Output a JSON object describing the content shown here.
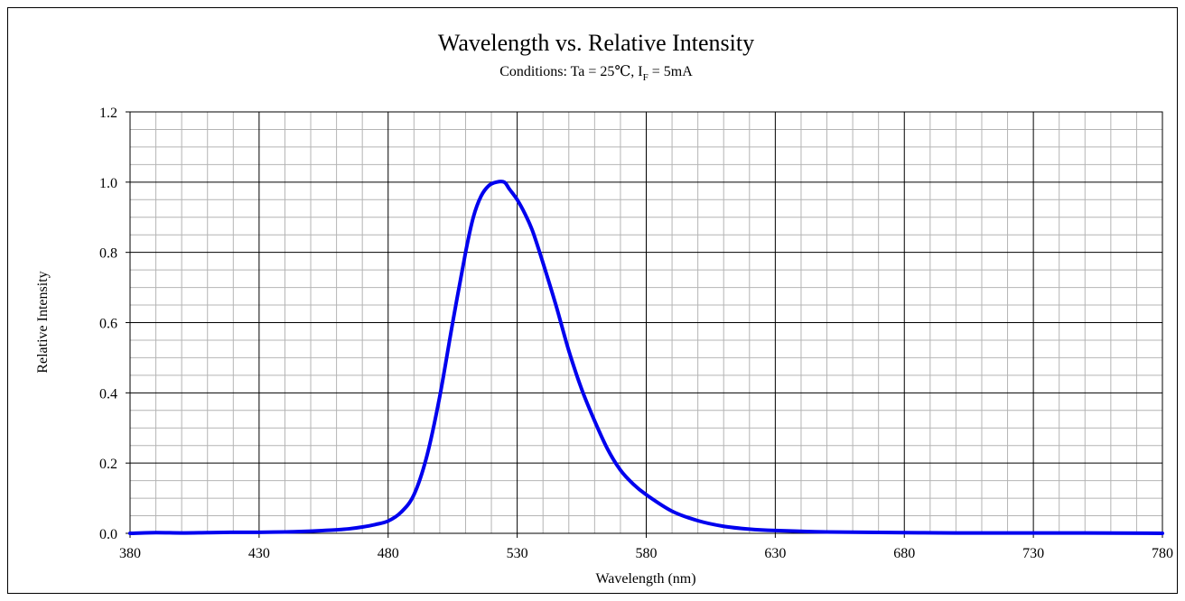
{
  "chart_data": {
    "type": "line",
    "title": "Wavelength vs. Relative Intensity",
    "subtitle": {
      "prefix": "Conditions: Ta = 25℃, I",
      "subscript": "F",
      "suffix": " = 5mA"
    },
    "xlabel": "Wavelength (nm)",
    "ylabel": "Relative Intensity",
    "xlim": [
      380,
      780
    ],
    "ylim": [
      0,
      1.2
    ],
    "x_ticks": [
      "380",
      "430",
      "480",
      "530",
      "580",
      "630",
      "680",
      "730",
      "780"
    ],
    "y_ticks": [
      "0.0",
      "0.2",
      "0.4",
      "0.6",
      "0.8",
      "1.0",
      "1.2"
    ],
    "grid": true,
    "line_color": "#0000ee",
    "series": [
      {
        "x": [
          380,
          390,
          400,
          410,
          420,
          430,
          440,
          450,
          455,
          460,
          465,
          470,
          475,
          480,
          485,
          490,
          495,
          500,
          505,
          510,
          513,
          516,
          519,
          522,
          525,
          527,
          530,
          533,
          536,
          540,
          545,
          550,
          555,
          560,
          565,
          570,
          575,
          580,
          590,
          600,
          610,
          620,
          630,
          650,
          680,
          700,
          750,
          780
        ],
        "y": [
          0.0,
          0.002,
          0.001,
          0.002,
          0.003,
          0.003,
          0.004,
          0.006,
          0.008,
          0.01,
          0.013,
          0.018,
          0.025,
          0.035,
          0.06,
          0.11,
          0.22,
          0.39,
          0.6,
          0.8,
          0.9,
          0.96,
          0.99,
          1.0,
          1.0,
          0.98,
          0.95,
          0.91,
          0.86,
          0.77,
          0.65,
          0.52,
          0.41,
          0.32,
          0.24,
          0.18,
          0.14,
          0.11,
          0.063,
          0.036,
          0.02,
          0.012,
          0.008,
          0.004,
          0.002,
          0.001,
          0.001,
          0.0
        ]
      }
    ]
  }
}
